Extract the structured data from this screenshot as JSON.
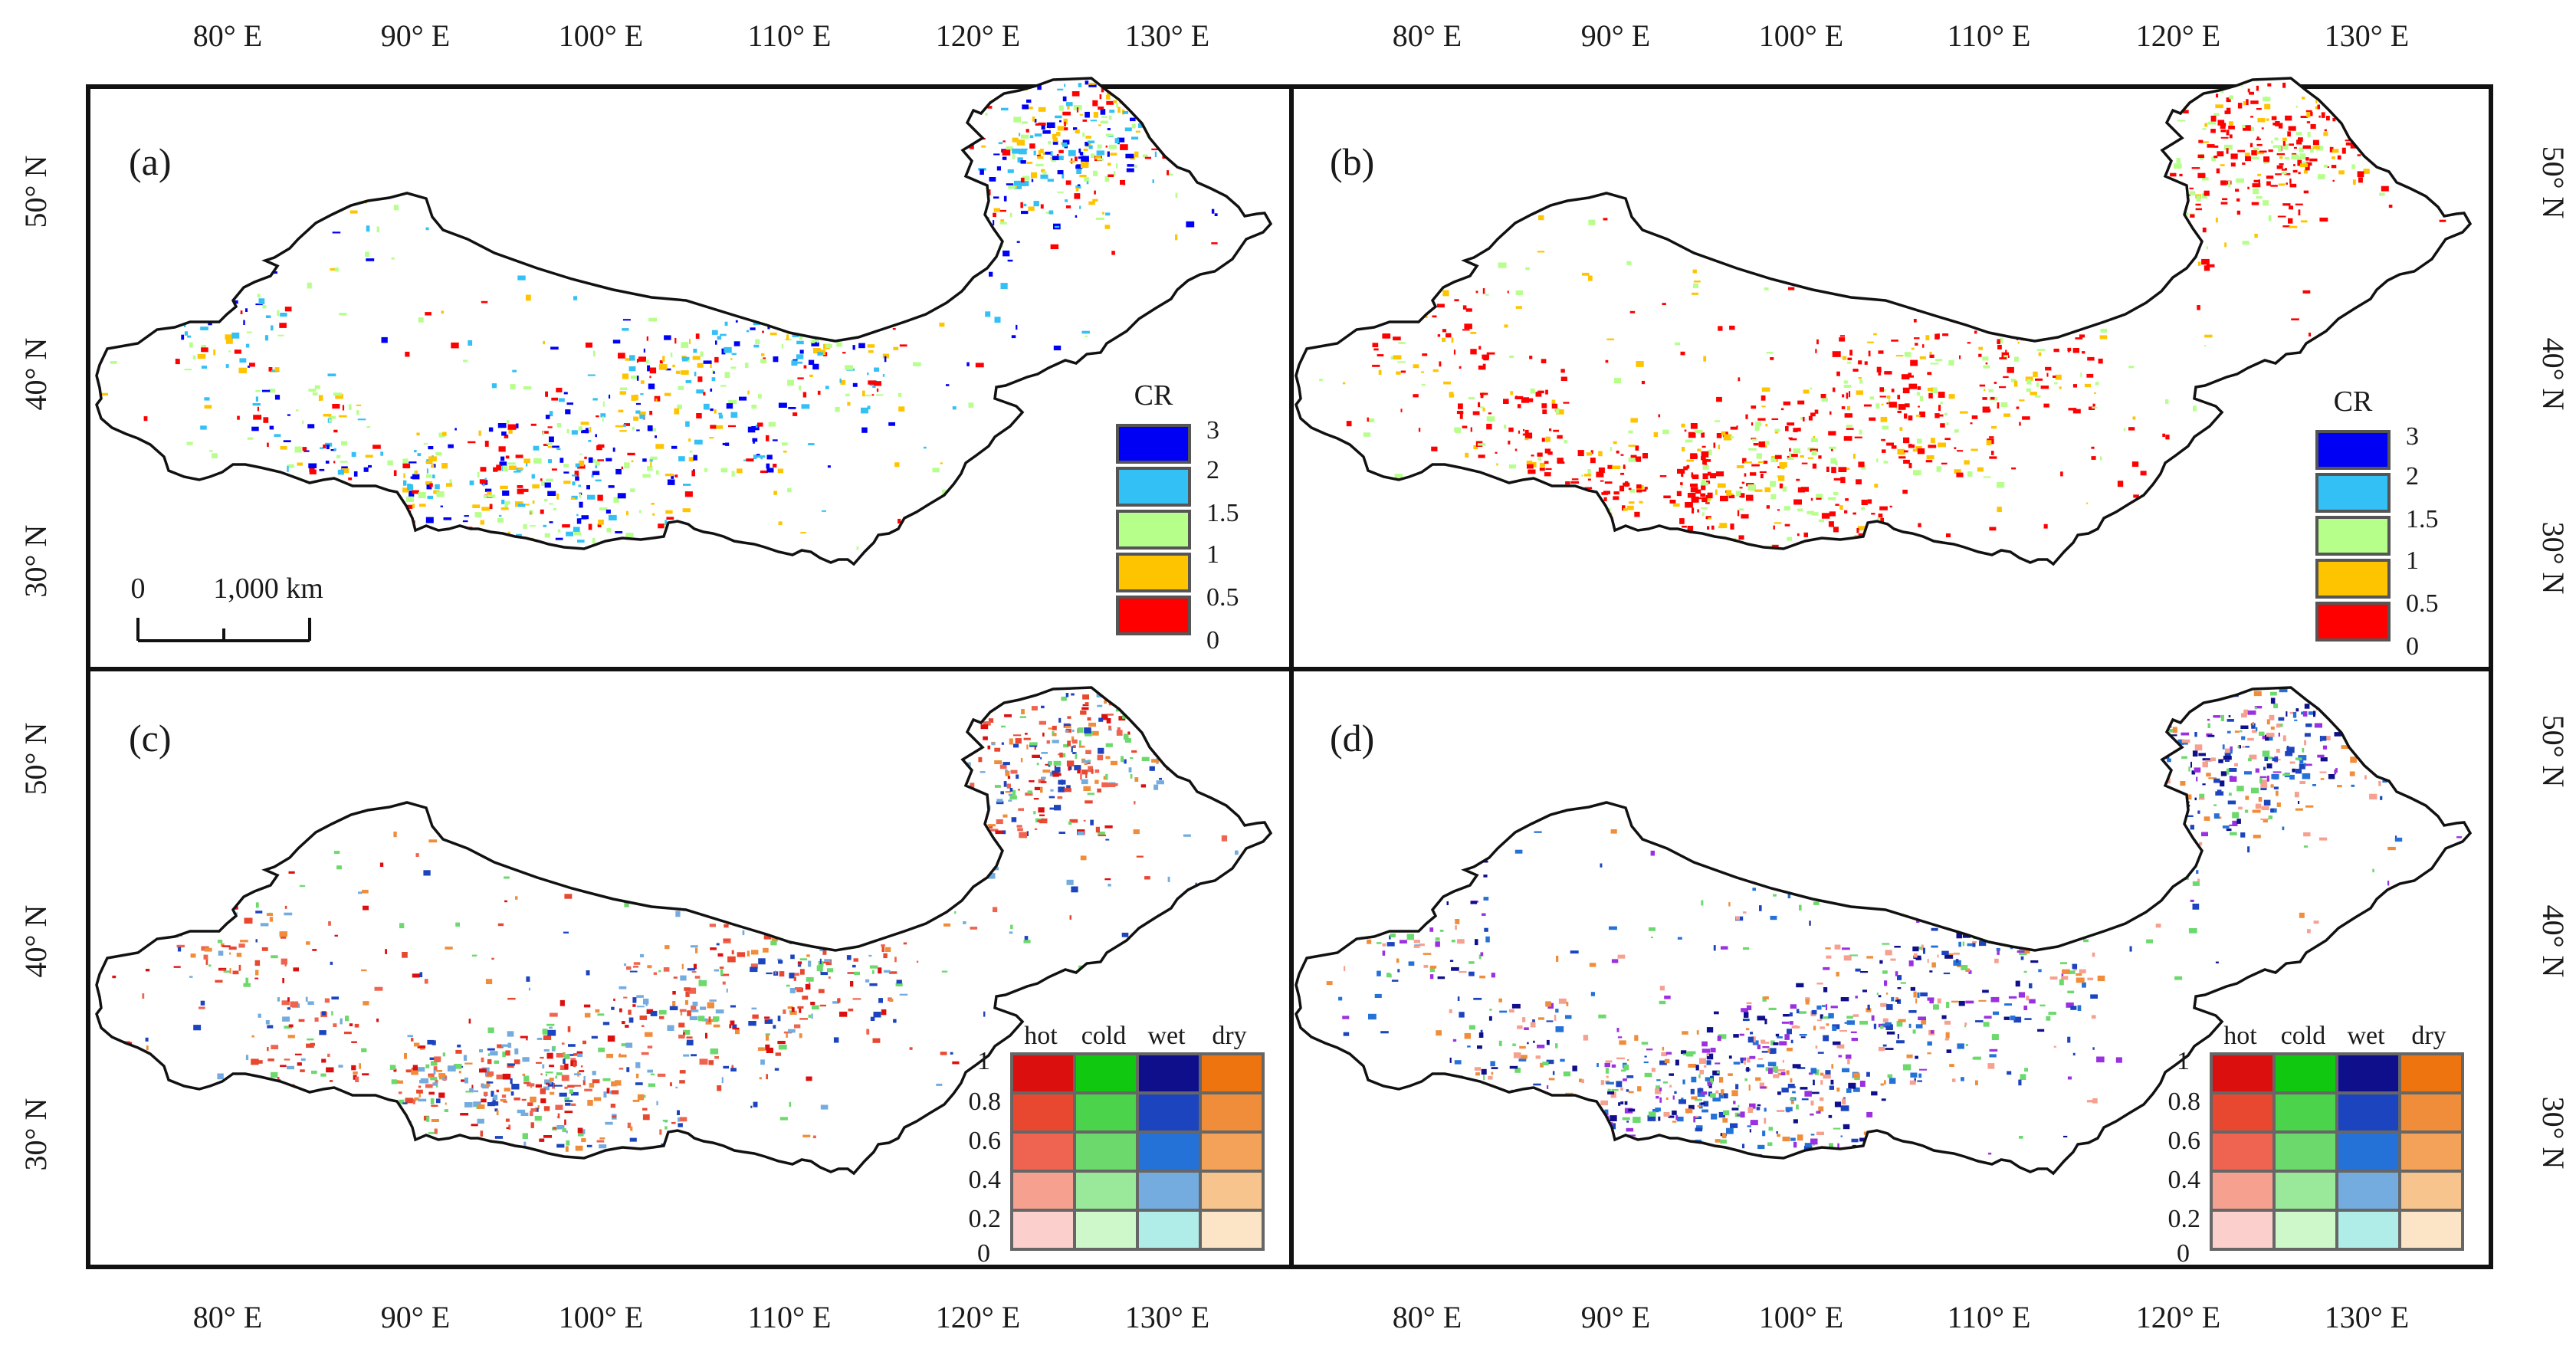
{
  "axes": {
    "lon_ticks": [
      "80° E",
      "90° E",
      "100° E",
      "110° E",
      "120° E",
      "130° E"
    ],
    "lat_ticks": [
      "50° N",
      "40° N",
      "30° N"
    ]
  },
  "panels": [
    {
      "id": "a",
      "label": "(a)",
      "legend_type": "cr"
    },
    {
      "id": "b",
      "label": "(b)",
      "legend_type": "cr"
    },
    {
      "id": "c",
      "label": "(c)",
      "legend_type": "matrix"
    },
    {
      "id": "d",
      "label": "(d)",
      "legend_type": "matrix"
    }
  ],
  "scale_bar": {
    "start": "0",
    "end": "1,000 km"
  },
  "cr_legend": {
    "title": "CR",
    "labels": [
      "3",
      "2",
      "1.5",
      "1",
      "0.5",
      "0"
    ],
    "colors": [
      "#0000f5",
      "#33c0f5",
      "#b5ff8a",
      "#ffc400",
      "#ff0000"
    ]
  },
  "matrix_legend": {
    "columns": [
      "hot",
      "cold",
      "wet",
      "dry"
    ],
    "row_labels": [
      "1",
      "0.8",
      "0.6",
      "0.4",
      "0.2",
      "0"
    ],
    "colors": [
      [
        "#dc0f0f",
        "#0fc80f",
        "#0f0f8c",
        "#ee7410"
      ],
      [
        "#e84830",
        "#4bd34b",
        "#1c44be",
        "#f08d3a"
      ],
      [
        "#ee6450",
        "#6cd96c",
        "#2472d8",
        "#f4a25a"
      ],
      [
        "#f6a090",
        "#9ae89a",
        "#74acdf",
        "#f8c48e"
      ],
      [
        "#fbd0cc",
        "#cef8ca",
        "#b0ece8",
        "#fce4c6"
      ]
    ]
  },
  "map_colors": {
    "a": [
      "#ff0000",
      "#ffc400",
      "#b5ff8a",
      "#33c0f5",
      "#0000f5"
    ],
    "b": [
      "#ff0000",
      "#ff0000",
      "#ff0000",
      "#ffc400",
      "#b5ff8a"
    ],
    "c": [
      "#ee6450",
      "#e84830",
      "#f08d3a",
      "#6cd96c",
      "#1c44be",
      "#74acdf",
      "#dc0f0f"
    ],
    "d": [
      "#0f0f8c",
      "#1c44be",
      "#2472d8",
      "#6cd96c",
      "#f08d3a",
      "#9b30e0",
      "#f6a090"
    ]
  }
}
